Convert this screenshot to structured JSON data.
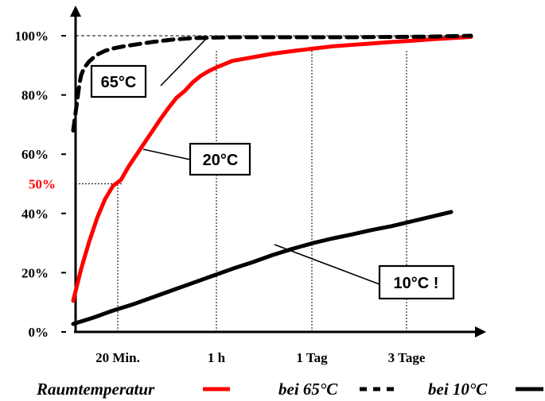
{
  "chart_data": {
    "type": "line",
    "title": "",
    "xlabel": "",
    "ylabel": "",
    "x_tick_labels": [
      "20 Min.",
      "1 h",
      "1 Tag",
      "3 Tage"
    ],
    "y_tick_labels": [
      "0%",
      "20%",
      "40%",
      "60%",
      "80%",
      "100%"
    ],
    "y_ticks": [
      0,
      20,
      40,
      60,
      80,
      100
    ],
    "x_range": [
      0,
      100
    ],
    "y_range": [
      0,
      100
    ],
    "highlight": {
      "label": "50%",
      "y": 50,
      "x": 12.4,
      "color": "#ff0000"
    },
    "reference_line_y": 100,
    "grid": "vertical dotted lines at x tick labels",
    "series": [
      {
        "name": "Raumtemperatur",
        "legend_label": "Raumtemperatur",
        "temperature_label": "20°C",
        "color": "#ff0000",
        "style": "solid",
        "x": [
          0,
          2,
          4,
          6,
          8,
          10,
          12,
          14,
          16,
          18,
          20,
          22,
          24,
          26,
          28,
          30,
          32,
          34,
          36,
          38,
          40,
          45,
          50,
          55,
          60,
          65,
          70,
          75,
          80,
          85,
          90,
          95,
          100
        ],
        "y": [
          10.5,
          21.3,
          30.4,
          38.4,
          44.8,
          49.3,
          51.3,
          56.0,
          60.0,
          64.0,
          68.0,
          72.0,
          75.7,
          79.1,
          81.3,
          84.2,
          86.4,
          88.0,
          89.3,
          90.4,
          91.5,
          92.7,
          93.9,
          94.8,
          95.6,
          96.4,
          96.9,
          97.4,
          97.9,
          98.3,
          98.8,
          99.2,
          99.6
        ]
      },
      {
        "name": "bei 65°C",
        "legend_label": "bei 65°C",
        "temperature_label": "65°C",
        "color": "#000000",
        "style": "dashed",
        "x": [
          0,
          0.4,
          0.8,
          1.2,
          1.6,
          2.0,
          2.4,
          3,
          4,
          5,
          6,
          8,
          10,
          13,
          16,
          20,
          25,
          30,
          40,
          50,
          60,
          70,
          80,
          90,
          100
        ],
        "y": [
          68.0,
          72.0,
          76.0,
          80.0,
          84.0,
          86.7,
          88.0,
          89.6,
          91.3,
          92.5,
          93.6,
          94.9,
          95.7,
          96.5,
          97.1,
          97.9,
          98.7,
          99.2,
          99.5,
          99.5,
          99.5,
          99.5,
          99.6,
          99.7,
          100.0
        ]
      },
      {
        "name": "bei 10°C",
        "legend_label": "bei 10°C",
        "temperature_label": "10°C !",
        "color": "#000000",
        "style": "solid",
        "x": [
          0,
          5,
          10,
          15,
          20,
          25,
          30,
          35,
          40,
          45,
          50,
          55,
          60,
          65,
          70,
          75,
          80,
          85,
          90,
          95
        ],
        "y": [
          2.7,
          4.8,
          7.2,
          9.3,
          11.7,
          14.1,
          16.5,
          18.9,
          21.3,
          23.5,
          25.9,
          28.0,
          29.9,
          31.5,
          32.9,
          34.4,
          35.7,
          37.3,
          38.9,
          40.5
        ]
      }
    ],
    "callouts": [
      {
        "label": "65°C",
        "series": "bei 65°C"
      },
      {
        "label": "20°C",
        "series": "Raumtemperatur"
      },
      {
        "label": "10°C !",
        "series": "bei 10°C"
      }
    ],
    "legend": {
      "placement": "bottom",
      "items": [
        {
          "label": "Raumtemperatur",
          "color": "#ff0000",
          "style": "solid"
        },
        {
          "label": "bei 65°C",
          "color": "#000000",
          "style": "dashed"
        },
        {
          "label": "bei 10°C",
          "color": "#000000",
          "style": "solid"
        }
      ]
    }
  }
}
